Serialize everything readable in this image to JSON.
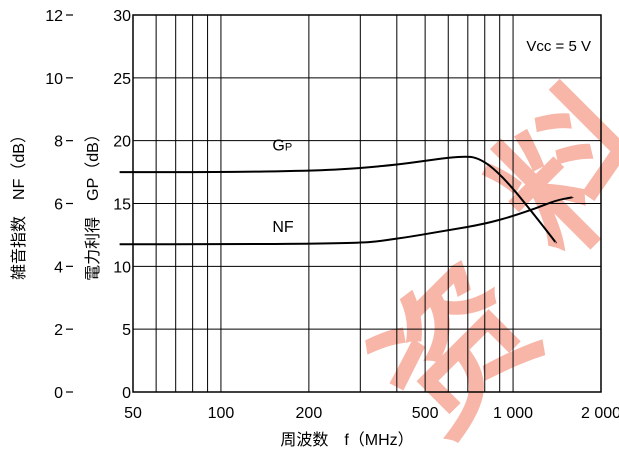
{
  "chart_data": {
    "type": "line",
    "x_axis": {
      "label": "周波数　f（MHz）",
      "scale": "log",
      "range": [
        50,
        2000
      ],
      "tick_values": [
        50,
        100,
        200,
        500,
        1000,
        2000
      ],
      "tick_labels": [
        "50",
        "100",
        "200",
        "500",
        "1 000",
        "2 000"
      ],
      "minor_grid_values": [
        60,
        70,
        80,
        90,
        300,
        400,
        600,
        700,
        800,
        900
      ]
    },
    "y_axis_left": {
      "label": "雑音指数　NF（dB）",
      "range": [
        0,
        12
      ],
      "tick_values": [
        0,
        2,
        4,
        6,
        8,
        10,
        12
      ],
      "tick_labels": [
        "0",
        "2",
        "4",
        "6",
        "8",
        "10",
        "12"
      ]
    },
    "y_axis_right_inner": {
      "label": "電力利得　GP（dB）",
      "range": [
        0,
        30
      ],
      "tick_values": [
        0,
        5,
        10,
        15,
        20,
        25,
        30
      ],
      "tick_labels": [
        "0",
        "5",
        "10",
        "15",
        "20",
        "25",
        "30"
      ]
    },
    "annotation": "Vcc = 5 V",
    "grid": true,
    "series": [
      {
        "name": "GP",
        "label_main": "G",
        "label_sub": "P",
        "axis": "gain",
        "color": "#000000",
        "points": [
          [
            45,
            17.5
          ],
          [
            100,
            17.5
          ],
          [
            200,
            17.6
          ],
          [
            300,
            17.8
          ],
          [
            400,
            18.1
          ],
          [
            500,
            18.4
          ],
          [
            600,
            18.65
          ],
          [
            700,
            18.75
          ],
          [
            760,
            18.6
          ],
          [
            850,
            17.9
          ],
          [
            1000,
            16.2
          ],
          [
            1200,
            13.9
          ],
          [
            1400,
            11.9
          ]
        ]
      },
      {
        "name": "NF",
        "label_main": "NF",
        "label_sub": "",
        "axis": "nf",
        "color": "#000000",
        "points": [
          [
            45,
            4.7
          ],
          [
            100,
            4.7
          ],
          [
            200,
            4.72
          ],
          [
            300,
            4.75
          ],
          [
            350,
            4.8
          ],
          [
            450,
            4.95
          ],
          [
            600,
            5.15
          ],
          [
            800,
            5.35
          ],
          [
            1000,
            5.6
          ],
          [
            1200,
            5.85
          ],
          [
            1400,
            6.1
          ],
          [
            1600,
            6.2
          ]
        ]
      }
    ]
  },
  "watermark": {
    "text": "资料",
    "color": "#f7b6a8"
  }
}
